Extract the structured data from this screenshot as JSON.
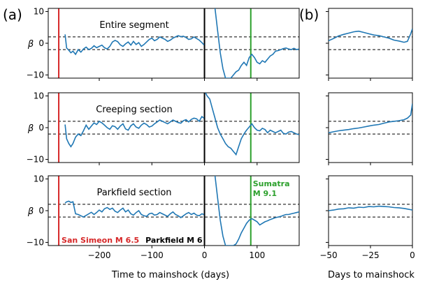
{
  "chart_data": {
    "type": "line",
    "panel_labels": [
      "(a)",
      "(b)"
    ],
    "ylabel": "β",
    "xlabel_left": "Time to mainshock (days)",
    "xlabel_right": "Days to mainshock",
    "ylim": [
      -11,
      11
    ],
    "yticks": [
      -10,
      0,
      10
    ],
    "xlim_left": [
      -297,
      180
    ],
    "xticks_left": [
      -200,
      -100,
      0,
      100
    ],
    "xlim_right": [
      -50,
      0
    ],
    "xticks_right": [
      -50,
      -25,
      0
    ],
    "threshold_lines": [
      2,
      -2
    ],
    "colors": {
      "series": "#1f77b4",
      "san_simeon": "#d62728",
      "parkfield": "#000000",
      "sumatra": "#2ca02c"
    },
    "events": {
      "san_simeon": {
        "x": -277,
        "label": "San Simeon M 6.5"
      },
      "parkfield": {
        "x": 0,
        "label": "Parkfield M 6"
      },
      "sumatra": {
        "x": 88,
        "label_line1": "Sumatra",
        "label_line2": "M 9.1"
      }
    },
    "rows": [
      {
        "title": "Entire segment",
        "left": {
          "x": [
            -265,
            -262,
            -258,
            -254,
            -250,
            -245,
            -240,
            -235,
            -230,
            -225,
            -220,
            -215,
            -210,
            -205,
            -200,
            -195,
            -190,
            -185,
            -180,
            -175,
            -170,
            -165,
            -160,
            -155,
            -150,
            -145,
            -140,
            -135,
            -130,
            -125,
            -120,
            -115,
            -110,
            -105,
            -100,
            -95,
            -90,
            -85,
            -80,
            -75,
            -70,
            -65,
            -60,
            -55,
            -50,
            -45,
            -40,
            -35,
            -30,
            -25,
            -20,
            -15,
            -10,
            -5,
            -1
          ],
          "y": [
            2.8,
            -1.5,
            -2.2,
            -3.0,
            -2.5,
            -3.5,
            -2.0,
            -2.8,
            -1.8,
            -1.2,
            -2.0,
            -1.6,
            -0.8,
            -1.4,
            -1.0,
            -0.6,
            -1.4,
            -1.8,
            -1.0,
            0.4,
            0.9,
            0.5,
            -0.5,
            -1.0,
            -0.2,
            0.4,
            -0.6,
            0.6,
            -0.4,
            0.2,
            -1.0,
            -0.4,
            0.4,
            1.2,
            1.6,
            0.8,
            1.2,
            2.0,
            1.6,
            1.2,
            0.6,
            1.0,
            1.6,
            2.0,
            2.4,
            2.1,
            2.2,
            1.8,
            1.2,
            1.4,
            2.0,
            1.5,
            1.0,
            0.2,
            -0.5
          ]
        },
        "post": {
          "x": [
            20,
            25,
            30,
            35,
            40,
            45,
            50,
            55,
            60,
            65,
            70,
            75,
            80,
            85,
            90,
            95,
            100,
            105,
            110,
            115,
            120,
            125,
            130,
            135,
            140,
            145,
            150,
            155,
            160,
            165,
            170,
            175,
            180
          ],
          "y": [
            11,
            4,
            -3,
            -8,
            -11,
            -11,
            -11,
            -10,
            -9,
            -8.5,
            -7,
            -6,
            -7,
            -4.5,
            -3.5,
            -4.5,
            -6,
            -6.5,
            -5.5,
            -6,
            -5,
            -4,
            -3.5,
            -2.5,
            -2.3,
            -2,
            -1.7,
            -1.5,
            -1.8,
            -2,
            -1.6,
            -2,
            -1.8
          ]
        },
        "right": {
          "x": [
            -50,
            -47,
            -44,
            -41,
            -38,
            -35,
            -32,
            -29,
            -26,
            -23,
            -20,
            -17,
            -14,
            -11,
            -8,
            -5,
            -3,
            -1,
            0
          ],
          "y": [
            0.8,
            1.5,
            2.3,
            2.8,
            3.2,
            3.6,
            3.8,
            3.4,
            3.0,
            2.6,
            2.4,
            2.0,
            1.6,
            1.0,
            0.7,
            0.3,
            0.6,
            3.0,
            4.6
          ]
        }
      },
      {
        "title": "Creeping section",
        "left": {
          "x": [
            -265,
            -262,
            -258,
            -254,
            -250,
            -245,
            -240,
            -235,
            -230,
            -225,
            -220,
            -215,
            -210,
            -205,
            -200,
            -195,
            -190,
            -185,
            -180,
            -175,
            -170,
            -165,
            -160,
            -155,
            -150,
            -145,
            -140,
            -135,
            -130,
            -125,
            -120,
            -115,
            -110,
            -105,
            -100,
            -95,
            -90,
            -85,
            -80,
            -75,
            -70,
            -65,
            -60,
            -55,
            -50,
            -45,
            -40,
            -35,
            -30,
            -25,
            -20,
            -15,
            -10,
            -5,
            -1
          ],
          "y": [
            1.0,
            -3.5,
            -5.0,
            -6.0,
            -5.0,
            -3.0,
            -2.0,
            -2.5,
            -1.0,
            0.8,
            -0.5,
            0.5,
            1.5,
            1.0,
            2.0,
            1.5,
            0.8,
            0.0,
            -0.5,
            0.6,
            0.3,
            -0.5,
            0.5,
            1.2,
            -0.4,
            -0.8,
            0.6,
            1.2,
            0.2,
            -0.2,
            0.8,
            1.4,
            1.0,
            0.2,
            0.5,
            1.2,
            1.8,
            2.4,
            2.0,
            1.6,
            1.2,
            1.8,
            2.4,
            2.0,
            1.6,
            1.4,
            2.2,
            2.5,
            1.8,
            2.6,
            3.0,
            2.8,
            2.0,
            3.5,
            3.0
          ]
        },
        "post": {
          "x": [
            2,
            5,
            10,
            15,
            20,
            25,
            30,
            35,
            40,
            45,
            50,
            55,
            60,
            65,
            70,
            75,
            80,
            85,
            90,
            95,
            100,
            105,
            110,
            115,
            120,
            125,
            130,
            135,
            140,
            145,
            150,
            155,
            160,
            165,
            170,
            175,
            180
          ],
          "y": [
            11,
            10,
            9,
            6,
            3,
            0,
            -2,
            -3.5,
            -5,
            -6,
            -6.5,
            -7.5,
            -8.5,
            -6,
            -3.5,
            -2,
            -0.8,
            0.2,
            1.2,
            0.0,
            -0.8,
            -1.0,
            -0.2,
            -0.6,
            -1.6,
            -0.8,
            -1.2,
            -1.6,
            -1.2,
            -0.8,
            -1.8,
            -2.0,
            -1.4,
            -1.2,
            -1.6,
            -2.0,
            -2.2
          ]
        },
        "right": {
          "x": [
            -50,
            -47,
            -44,
            -41,
            -38,
            -35,
            -32,
            -29,
            -26,
            -23,
            -20,
            -17,
            -14,
            -11,
            -8,
            -5,
            -3,
            -1,
            0
          ],
          "y": [
            -1.6,
            -1.3,
            -1.0,
            -0.8,
            -0.6,
            -0.3,
            -0.1,
            0.2,
            0.5,
            0.8,
            1.0,
            1.4,
            1.8,
            2.0,
            2.2,
            2.5,
            3.0,
            4.0,
            7.6
          ]
        }
      },
      {
        "title": "Parkfield section",
        "left": {
          "x": [
            -265,
            -262,
            -258,
            -254,
            -250,
            -245,
            -240,
            -235,
            -230,
            -225,
            -220,
            -215,
            -210,
            -205,
            -200,
            -195,
            -190,
            -185,
            -180,
            -175,
            -170,
            -165,
            -160,
            -155,
            -150,
            -145,
            -140,
            -135,
            -130,
            -125,
            -120,
            -115,
            -110,
            -105,
            -100,
            -95,
            -90,
            -85,
            -80,
            -75,
            -70,
            -65,
            -60,
            -55,
            -50,
            -45,
            -40,
            -35,
            -30,
            -25,
            -20,
            -15,
            -10,
            -5,
            -1
          ],
          "y": [
            2.4,
            2.8,
            3.0,
            2.6,
            2.8,
            -1.0,
            -1.2,
            -1.6,
            -2.0,
            -1.5,
            -1.0,
            -0.5,
            -1.2,
            -0.6,
            0.2,
            -0.4,
            0.6,
            1.0,
            0.4,
            0.8,
            -0.2,
            -0.6,
            0.2,
            0.8,
            -0.4,
            0.2,
            -1.0,
            -1.4,
            -0.6,
            0.0,
            -1.2,
            -1.6,
            -1.8,
            -1.0,
            -0.8,
            -1.4,
            -1.2,
            -0.6,
            -1.0,
            -1.4,
            -1.8,
            -1.0,
            -0.4,
            -1.2,
            -1.6,
            -2.2,
            -1.6,
            -1.0,
            -0.6,
            -1.2,
            -0.8,
            -1.4,
            -1.6,
            -1.0,
            -1.2
          ]
        },
        "post": {
          "x": [
            20,
            25,
            30,
            35,
            40,
            45,
            50,
            55,
            60,
            65,
            70,
            75,
            80,
            85,
            90,
            95,
            100,
            105,
            110,
            115,
            120,
            125,
            130,
            135,
            140,
            145,
            150,
            155,
            160,
            165,
            170,
            175,
            180
          ],
          "y": [
            11,
            4,
            -3,
            -8,
            -11,
            -11,
            -11,
            -11,
            -10.5,
            -9,
            -7,
            -5.5,
            -4,
            -3,
            -2.5,
            -3,
            -3.5,
            -4.5,
            -4,
            -3.5,
            -3.2,
            -2.8,
            -2.5,
            -2.2,
            -2,
            -1.8,
            -1.5,
            -1.2,
            -1.2,
            -1,
            -0.8,
            -0.6,
            -0.4
          ]
        },
        "right": {
          "x": [
            -50,
            -47,
            -44,
            -41,
            -38,
            -35,
            -32,
            -29,
            -26,
            -23,
            -20,
            -17,
            -14,
            -11,
            -8,
            -5,
            -3,
            -1,
            0
          ],
          "y": [
            0.0,
            0.2,
            0.5,
            0.6,
            0.9,
            0.8,
            1.1,
            1.0,
            1.3,
            1.2,
            1.4,
            1.3,
            1.2,
            1.0,
            0.9,
            0.7,
            0.5,
            0.3,
            0.2
          ]
        }
      }
    ]
  }
}
